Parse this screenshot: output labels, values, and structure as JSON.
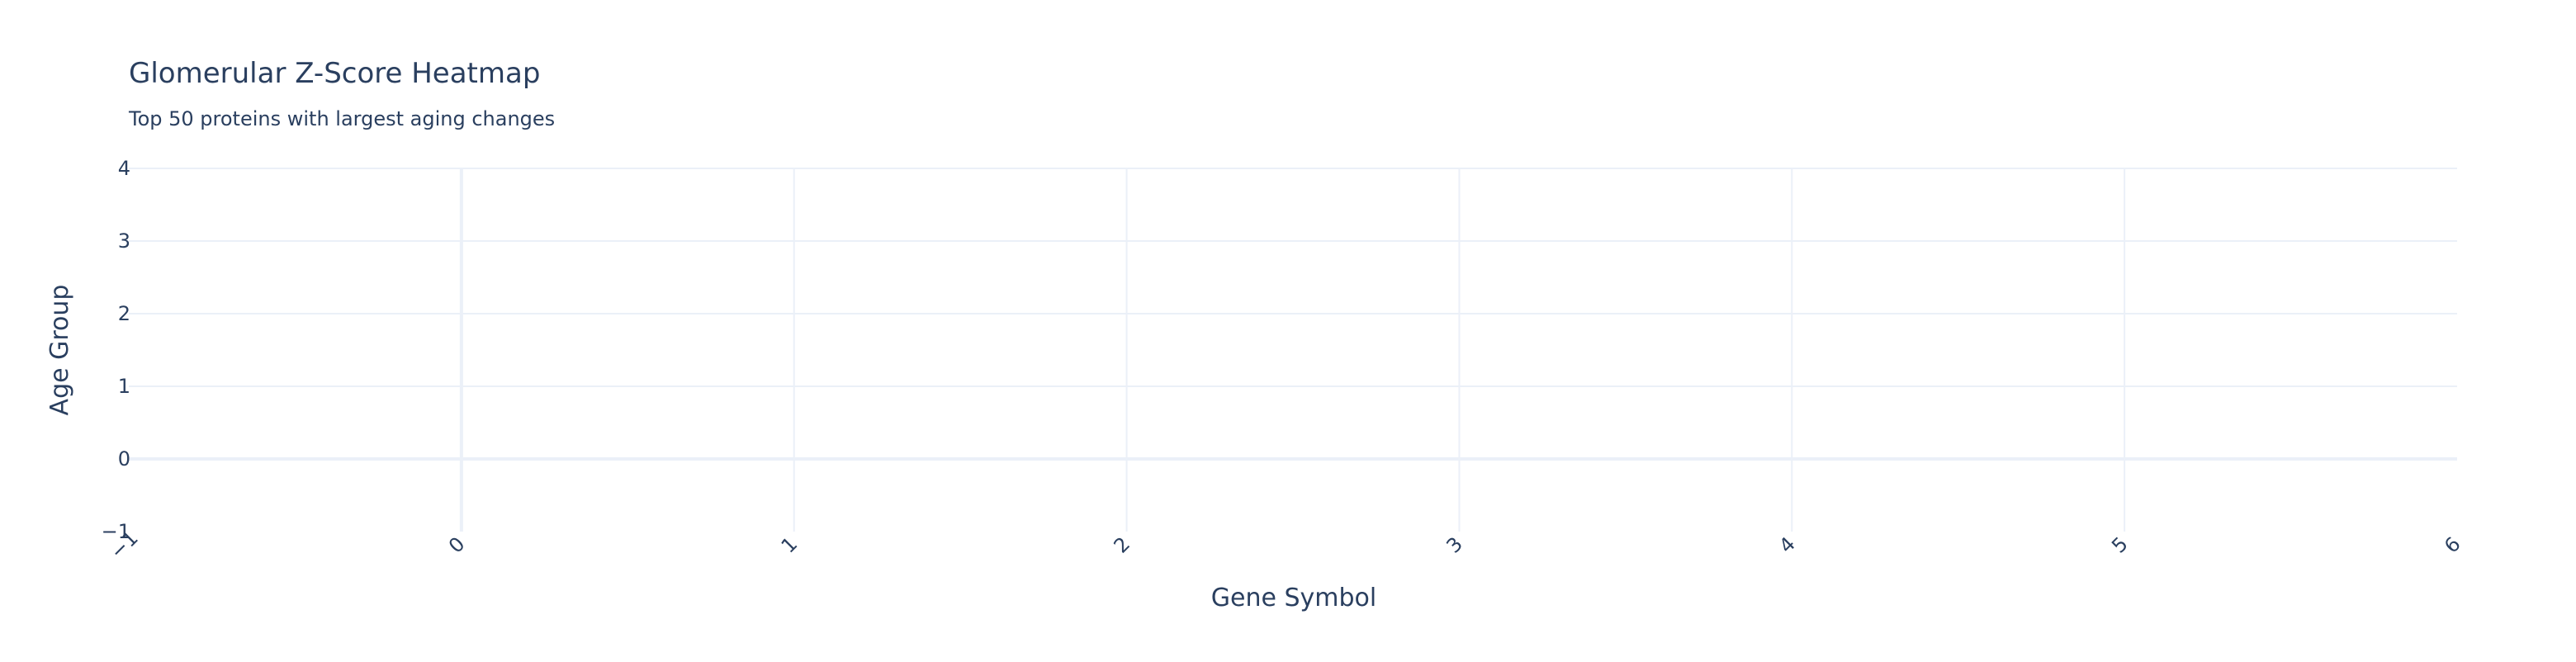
{
  "chart_data": {
    "type": "heatmap",
    "title": "Glomerular Z-Score Heatmap",
    "subtitle": "Top 50 proteins with largest aging changes",
    "xlabel": "Gene Symbol",
    "ylabel": "Age Group",
    "xlim": [
      -1,
      6
    ],
    "ylim": [
      -1,
      4
    ],
    "x_ticks": [
      "−1",
      "0",
      "1",
      "2",
      "3",
      "4",
      "5",
      "6"
    ],
    "y_ticks": [
      "−1",
      "0",
      "1",
      "2",
      "3",
      "4"
    ],
    "grid": true,
    "colors": {
      "text": "#2a3f5f",
      "grid": "#ebf0f8",
      "background": "#ffffff"
    }
  }
}
